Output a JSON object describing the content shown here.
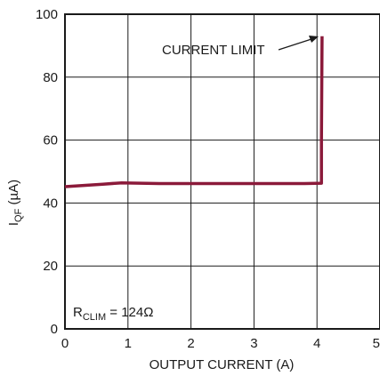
{
  "chart_data": {
    "type": "line",
    "xlabel": "OUTPUT CURRENT (A)",
    "ylabel_main": "I",
    "ylabel_sub": "QF",
    "ylabel_unit": " (µA)",
    "xlim": [
      0,
      5
    ],
    "ylim": [
      0,
      100
    ],
    "x_ticks": [
      0,
      1,
      2,
      3,
      4,
      5
    ],
    "y_ticks": [
      0,
      20,
      40,
      60,
      80,
      100
    ],
    "x_tick_labels": [
      "0",
      "1",
      "2",
      "3",
      "4",
      "5"
    ],
    "y_tick_labels": [
      "0",
      "20",
      "40",
      "60",
      "80",
      "100"
    ],
    "grid": true,
    "series": [
      {
        "color": "#8b1a3a",
        "x": [
          0,
          0.3,
          0.6,
          0.9,
          1.5,
          2.0,
          3.0,
          3.8,
          4.07,
          4.07,
          4.08
        ],
        "y": [
          45.2,
          45.6,
          46.0,
          46.4,
          46.2,
          46.2,
          46.2,
          46.2,
          46.3,
          60,
          93
        ]
      }
    ],
    "annotations": {
      "current_limit": {
        "text": "CURRENT LIMIT",
        "target_x": 4.08,
        "target_y": 93
      },
      "rclim": {
        "main": "R",
        "sub": "CLIM",
        "rest": " = 124Ω"
      }
    }
  }
}
